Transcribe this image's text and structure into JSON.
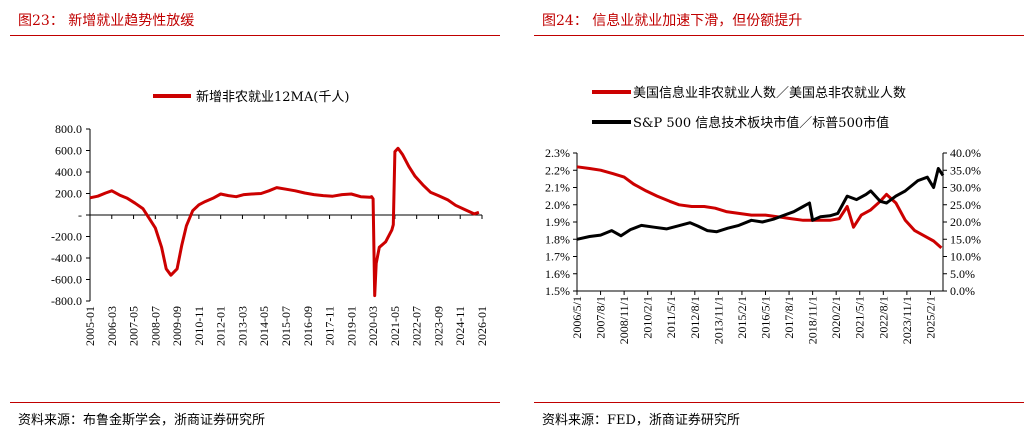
{
  "left": {
    "figure_title": "图23： 新增就业趋势性放缓",
    "source": "资料来源：布鲁金斯学会，浙商证券研究所"
  },
  "right": {
    "figure_title": "图24： 信息业就业加速下滑，但份额提升",
    "source": "资料来源：FED，浙商证券研究所"
  },
  "colors": {
    "accent": "#c00000",
    "series_red": "#cc0000",
    "series_black": "#000000"
  },
  "chart_data": [
    {
      "type": "line",
      "series": [
        {
          "name": "新增非农就业12MA(千人)",
          "color": "#cc0000",
          "points": [
            [
              "2005-01",
              160
            ],
            [
              "2005-06",
              175
            ],
            [
              "2005-11",
              205
            ],
            [
              "2006-03",
              225
            ],
            [
              "2006-08",
              185
            ],
            [
              "2007-01",
              155
            ],
            [
              "2007-06",
              110
            ],
            [
              "2007-11",
              60
            ],
            [
              "2008-03",
              -30
            ],
            [
              "2008-07",
              -120
            ],
            [
              "2008-11",
              -300
            ],
            [
              "2009-02",
              -500
            ],
            [
              "2009-05",
              -560
            ],
            [
              "2009-09",
              -500
            ],
            [
              "2009-12",
              -280
            ],
            [
              "2010-03",
              -100
            ],
            [
              "2010-07",
              40
            ],
            [
              "2010-11",
              95
            ],
            [
              "2011-03",
              125
            ],
            [
              "2011-08",
              155
            ],
            [
              "2012-01",
              195
            ],
            [
              "2012-06",
              180
            ],
            [
              "2012-11",
              170
            ],
            [
              "2013-04",
              190
            ],
            [
              "2013-09",
              195
            ],
            [
              "2014-03",
              200
            ],
            [
              "2014-08",
              225
            ],
            [
              "2015-01",
              255
            ],
            [
              "2015-07",
              240
            ],
            [
              "2016-01",
              225
            ],
            [
              "2016-07",
              205
            ],
            [
              "2017-01",
              190
            ],
            [
              "2017-07",
              180
            ],
            [
              "2018-01",
              175
            ],
            [
              "2018-07",
              190
            ],
            [
              "2019-01",
              195
            ],
            [
              "2019-07",
              170
            ],
            [
              "2020-01",
              165
            ],
            [
              "2020-02",
              170
            ],
            [
              "2020-03",
              150
            ],
            [
              "2020-04",
              -750
            ],
            [
              "2020-05",
              -450
            ],
            [
              "2020-07",
              -300
            ],
            [
              "2020-11",
              -250
            ],
            [
              "2021-03",
              -140
            ],
            [
              "2021-04",
              -90
            ],
            [
              "2021-05",
              590
            ],
            [
              "2021-07",
              620
            ],
            [
              "2021-10",
              560
            ],
            [
              "2022-02",
              450
            ],
            [
              "2022-06",
              360
            ],
            [
              "2022-11",
              280
            ],
            [
              "2023-04",
              210
            ],
            [
              "2023-09",
              180
            ],
            [
              "2024-03",
              140
            ],
            [
              "2024-08",
              90
            ],
            [
              "2025-02",
              50
            ],
            [
              "2025-08",
              10
            ],
            [
              "2025-11",
              25
            ]
          ]
        }
      ],
      "x_ticks": [
        "2005-01",
        "2006-03",
        "2007-05",
        "2008-07",
        "2009-09",
        "2010-11",
        "2012-01",
        "2013-03",
        "2014-05",
        "2015-07",
        "2016-09",
        "2017-11",
        "2019-01",
        "2020-03",
        "2021-05",
        "2022-07",
        "2023-09",
        "2024-11",
        "2026-01"
      ],
      "y_ticks": [
        "800.0",
        "600.0",
        "400.0",
        "200.0",
        "-",
        "-200.0",
        "-400.0",
        "-600.0",
        "-800.0"
      ],
      "ylim": [
        -800,
        800
      ],
      "legend_position": "top-center",
      "grid": false
    },
    {
      "type": "line",
      "series": [
        {
          "name": "美国信息业非农就业人数／美国总非农就业人数",
          "axis": "left",
          "color": "#cc0000",
          "points": [
            [
              "2006-05",
              2.22
            ],
            [
              "2007-01",
              2.21
            ],
            [
              "2007-08",
              2.2
            ],
            [
              "2008-04",
              2.18
            ],
            [
              "2008-11",
              2.16
            ],
            [
              "2009-05",
              2.12
            ],
            [
              "2010-01",
              2.08
            ],
            [
              "2010-08",
              2.05
            ],
            [
              "2011-04",
              2.02
            ],
            [
              "2011-10",
              2.0
            ],
            [
              "2012-06",
              1.99
            ],
            [
              "2013-02",
              1.99
            ],
            [
              "2013-09",
              1.98
            ],
            [
              "2014-04",
              1.96
            ],
            [
              "2014-12",
              1.95
            ],
            [
              "2015-08",
              1.94
            ],
            [
              "2016-05",
              1.94
            ],
            [
              "2017-01",
              1.93
            ],
            [
              "2017-09",
              1.92
            ],
            [
              "2018-05",
              1.91
            ],
            [
              "2019-02",
              1.91
            ],
            [
              "2019-10",
              1.91
            ],
            [
              "2020-04",
              1.92
            ],
            [
              "2020-09",
              1.99
            ],
            [
              "2021-01",
              1.87
            ],
            [
              "2021-06",
              1.94
            ],
            [
              "2021-12",
              1.97
            ],
            [
              "2022-06",
              2.02
            ],
            [
              "2022-10",
              2.06
            ],
            [
              "2023-04",
              2.01
            ],
            [
              "2023-10",
              1.91
            ],
            [
              "2024-04",
              1.85
            ],
            [
              "2024-10",
              1.82
            ],
            [
              "2025-04",
              1.79
            ],
            [
              "2025-09",
              1.75
            ]
          ]
        },
        {
          "name": "S&P 500 信息技术板块市值／标普500市值",
          "axis": "right",
          "color": "#000000",
          "points": [
            [
              "2006-05",
              15.0
            ],
            [
              "2007-01",
              15.8
            ],
            [
              "2007-08",
              16.2
            ],
            [
              "2008-03",
              17.5
            ],
            [
              "2008-09",
              16.0
            ],
            [
              "2009-03",
              17.8
            ],
            [
              "2009-10",
              19.0
            ],
            [
              "2010-06",
              18.5
            ],
            [
              "2011-02",
              18.0
            ],
            [
              "2011-09",
              18.8
            ],
            [
              "2012-05",
              19.8
            ],
            [
              "2012-10",
              18.8
            ],
            [
              "2013-04",
              17.5
            ],
            [
              "2013-10",
              17.2
            ],
            [
              "2014-05",
              18.2
            ],
            [
              "2014-12",
              19.0
            ],
            [
              "2015-08",
              20.5
            ],
            [
              "2016-03",
              20.0
            ],
            [
              "2016-10",
              20.8
            ],
            [
              "2017-05",
              22.0
            ],
            [
              "2017-11",
              23.0
            ],
            [
              "2018-05",
              24.5
            ],
            [
              "2018-09",
              25.5
            ],
            [
              "2018-11",
              20.5
            ],
            [
              "2019-04",
              21.5
            ],
            [
              "2019-10",
              21.8
            ],
            [
              "2020-03",
              22.5
            ],
            [
              "2020-09",
              27.5
            ],
            [
              "2021-03",
              26.5
            ],
            [
              "2021-09",
              28.0
            ],
            [
              "2021-12",
              29.0
            ],
            [
              "2022-06",
              26.0
            ],
            [
              "2022-10",
              25.5
            ],
            [
              "2023-04",
              27.5
            ],
            [
              "2023-10",
              29.0
            ],
            [
              "2024-06",
              32.0
            ],
            [
              "2024-12",
              33.0
            ],
            [
              "2025-04",
              30.0
            ],
            [
              "2025-07",
              35.5
            ],
            [
              "2025-10",
              33.5
            ]
          ]
        }
      ],
      "x_ticks": [
        "2006/5/1",
        "2007/8/1",
        "2008/11/1",
        "2010/2/1",
        "2011/5/1",
        "2012/8/1",
        "2013/11/1",
        "2015/2/1",
        "2016/5/1",
        "2017/8/1",
        "2018/11/1",
        "2020/2/1",
        "2021/5/1",
        "2022/8/1",
        "2023/11/1",
        "2025/2/1"
      ],
      "y_left_ticks": [
        "2.3%",
        "2.2%",
        "2.1%",
        "2.0%",
        "1.9%",
        "1.8%",
        "1.7%",
        "1.6%",
        "1.5%"
      ],
      "y_right_ticks": [
        "40.0%",
        "35.0%",
        "30.0%",
        "25.0%",
        "20.0%",
        "15.0%",
        "10.0%",
        "5.0%",
        "0.0%"
      ],
      "y_left_range": [
        1.5,
        2.3
      ],
      "y_right_range": [
        0,
        40
      ],
      "legend_position": "top-left",
      "grid": false
    }
  ]
}
